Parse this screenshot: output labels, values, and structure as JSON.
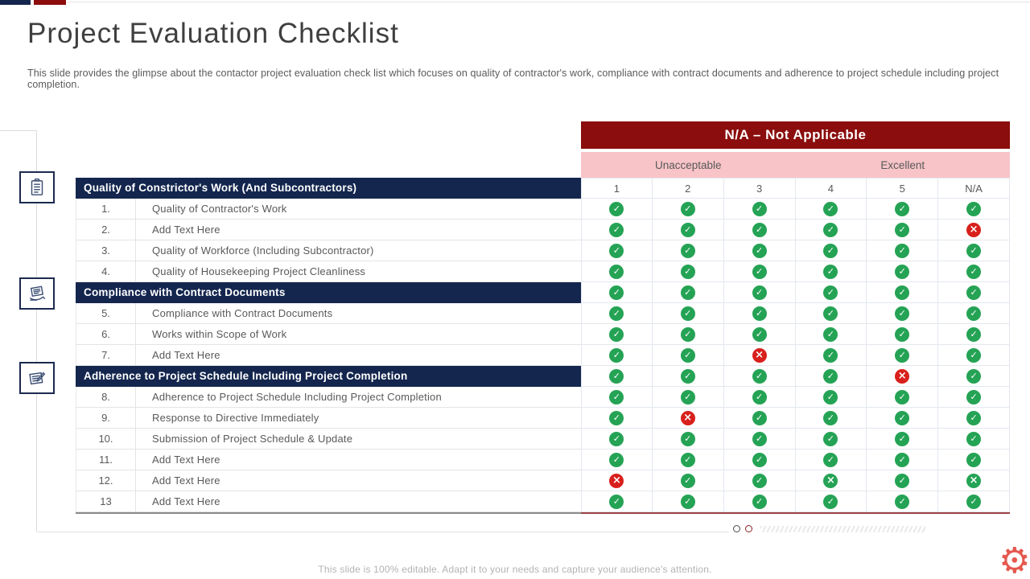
{
  "slide": {
    "title": "Project Evaluation Checklist",
    "subtitle": "This slide provides the glimpse about the contactor project evaluation check list which focuses on quality of contractor's work, compliance with contract documents and adherence to project schedule including project completion.",
    "footer_note": "This slide is 100% editable. Adapt it to your needs and capture your audience's attention."
  },
  "legend": {
    "title": "N/A – Not Applicable",
    "low_label": "Unacceptable",
    "high_label": "Excellent",
    "rating_columns": [
      "1",
      "2",
      "3",
      "4",
      "5",
      "N/A"
    ]
  },
  "checklist": {
    "rows": [
      {
        "type": "section",
        "label": "Quality of Constrictor's Work (And Subcontractors)"
      },
      {
        "type": "item",
        "num": "1.",
        "label": "Quality of Contractor's Work",
        "marks": [
          "c",
          "c",
          "c",
          "c",
          "c",
          "c"
        ]
      },
      {
        "type": "item",
        "num": "2.",
        "label": "Add Text Here",
        "marks": [
          "c",
          "c",
          "c",
          "c",
          "c",
          "x"
        ]
      },
      {
        "type": "item",
        "num": "3.",
        "label": "Quality of Workforce (Including Subcontractor)",
        "marks": [
          "c",
          "c",
          "c",
          "c",
          "c",
          "c"
        ]
      },
      {
        "type": "item",
        "num": "4.",
        "label": "Quality of Housekeeping Project Cleanliness",
        "marks": [
          "c",
          "c",
          "c",
          "c",
          "c",
          "c"
        ]
      },
      {
        "type": "section",
        "label": "Compliance with Contract Documents",
        "marks": [
          "c",
          "c",
          "c",
          "c",
          "c",
          "c"
        ]
      },
      {
        "type": "item",
        "num": "5.",
        "label": "Compliance with Contract Documents",
        "marks": [
          "c",
          "c",
          "c",
          "c",
          "c",
          "c"
        ]
      },
      {
        "type": "item",
        "num": "6.",
        "label": "Works within Scope of Work",
        "marks": [
          "c",
          "c",
          "c",
          "c",
          "c",
          "c"
        ]
      },
      {
        "type": "item",
        "num": "7.",
        "label": "Add Text Here",
        "marks": [
          "c",
          "c",
          "x",
          "c",
          "c",
          "c"
        ]
      },
      {
        "type": "section",
        "label": "Adherence to Project Schedule Including Project Completion",
        "marks": [
          "c",
          "c",
          "c",
          "c",
          "x",
          "c"
        ]
      },
      {
        "type": "item",
        "num": "8.",
        "label": "Adherence to Project Schedule Including Project Completion",
        "marks": [
          "c",
          "c",
          "c",
          "c",
          "c",
          "c"
        ]
      },
      {
        "type": "item",
        "num": "9.",
        "label": "Response to Directive Immediately",
        "marks": [
          "c",
          "x",
          "c",
          "c",
          "c",
          "c"
        ]
      },
      {
        "type": "item",
        "num": "10.",
        "label": "Submission of Project Schedule & Update",
        "marks": [
          "c",
          "c",
          "c",
          "c",
          "c",
          "c"
        ]
      },
      {
        "type": "item",
        "num": "11.",
        "label": "Add Text Here",
        "marks": [
          "c",
          "c",
          "c",
          "c",
          "c",
          "c"
        ]
      },
      {
        "type": "item",
        "num": "12.",
        "label": "Add Text Here",
        "marks": [
          "x",
          "c",
          "c",
          "xg",
          "c",
          "xg"
        ]
      },
      {
        "type": "item",
        "num": "13",
        "label": "Add Text Here",
        "marks": [
          "c",
          "c",
          "c",
          "c",
          "c",
          "c"
        ]
      }
    ]
  },
  "side_icons": [
    "clipboard-checklist-icon",
    "hand-document-icon",
    "document-edit-icon"
  ],
  "pagination": {
    "dot_count": 2
  },
  "marks_legend": {
    "c": "green check",
    "x": "red cross",
    "xg": "green cross"
  },
  "colors": {
    "navy": "#14264e",
    "maroon": "#8b0d0d",
    "pink": "#f8c4c8",
    "green": "#25a355",
    "red": "#d8201c",
    "gear": "#e4584e"
  }
}
